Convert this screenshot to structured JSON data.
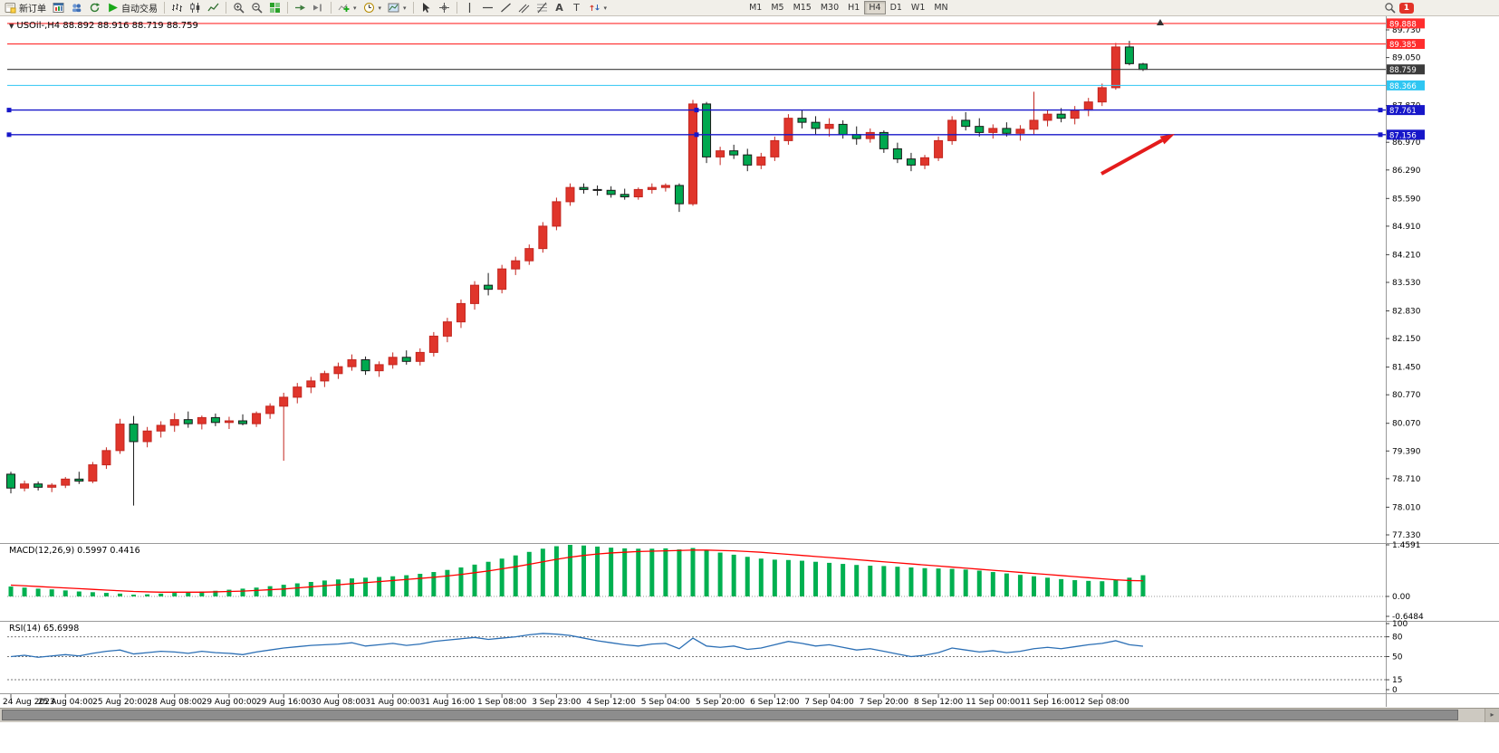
{
  "toolbar": {
    "new_order_label": "新订单",
    "autotrade_label": "自动交易",
    "timeframes": [
      "M1",
      "M5",
      "M15",
      "M30",
      "H1",
      "H4",
      "D1",
      "W1",
      "MN"
    ],
    "active_timeframe": "H4",
    "notification_count": "1",
    "text_tool_label": "A",
    "label_tool_label": "T",
    "scrollbar_arrow": "▸"
  },
  "chart": {
    "symbol_header": "USOil-,H4 88.892 88.916 88.719 88.759",
    "ohlc": {
      "open": "88.892",
      "high": "88.916",
      "low": "88.719",
      "close": "88.759"
    },
    "price_axis_labels": [
      "89.730",
      "89.050",
      "87.870",
      "86.970",
      "86.290",
      "85.590",
      "84.910",
      "84.210",
      "83.530",
      "82.830",
      "82.150",
      "81.450",
      "80.770",
      "80.070",
      "79.390",
      "78.710",
      "78.010",
      "77.330"
    ],
    "time_axis_labels": [
      "24 Aug 2023",
      "25 Aug 04:00",
      "25 Aug 20:00",
      "28 Aug 08:00",
      "29 Aug 00:00",
      "29 Aug 16:00",
      "30 Aug 08:00",
      "31 Aug 00:00",
      "31 Aug 16:00",
      "1 Sep 08:00",
      "3 Sep 23:00",
      "4 Sep 12:00",
      "5 Sep 04:00",
      "5 Sep 20:00",
      "6 Sep 12:00",
      "7 Sep 04:00",
      "7 Sep 20:00",
      "8 Sep 12:00",
      "11 Sep 00:00",
      "11 Sep 16:00",
      "12 Sep 08:00"
    ],
    "levels": [
      {
        "name": "resistance-line-1",
        "label": "89.888",
        "price": 89.888,
        "color": "#ff2d2d",
        "handles": false
      },
      {
        "name": "resistance-line-2",
        "label": "89.385",
        "price": 89.385,
        "color": "#ff2d2d",
        "handles": false
      },
      {
        "name": "current-price",
        "label": "88.759",
        "price": 88.759,
        "color": "#3c3c3c",
        "handles": false
      },
      {
        "name": "cyan-level-line",
        "label": "88.366",
        "price": 88.366,
        "color": "#2fc6f2",
        "handles": false
      },
      {
        "name": "blue-support-line-1",
        "label": "87.761",
        "price": 87.761,
        "color": "#1717c9",
        "handles": true
      },
      {
        "name": "blue-support-line-2",
        "label": "87.156",
        "price": 87.156,
        "color": "#1717c9",
        "handles": true
      }
    ],
    "annotation_arrow": {
      "color": "#e41b1b"
    }
  },
  "chart_data": {
    "type": "candlestick",
    "symbol": "USOil-",
    "timeframe": "H4",
    "up_color": "#e0352b",
    "down_color": "#00a84f",
    "candles": [
      [
        78.82,
        78.88,
        78.35,
        78.48
      ],
      [
        78.48,
        78.66,
        78.4,
        78.58
      ],
      [
        78.58,
        78.64,
        78.42,
        78.5
      ],
      [
        78.5,
        78.6,
        78.38,
        78.55
      ],
      [
        78.55,
        78.75,
        78.48,
        78.7
      ],
      [
        78.7,
        78.88,
        78.58,
        78.65
      ],
      [
        78.65,
        79.12,
        78.6,
        79.05
      ],
      [
        79.05,
        79.48,
        78.95,
        79.4
      ],
      [
        79.4,
        80.18,
        79.32,
        80.05
      ],
      [
        80.05,
        80.25,
        78.05,
        79.62
      ],
      [
        79.62,
        79.98,
        79.48,
        79.88
      ],
      [
        79.88,
        80.12,
        79.72,
        80.02
      ],
      [
        80.02,
        80.32,
        79.86,
        80.16
      ],
      [
        80.16,
        80.36,
        79.96,
        80.06
      ],
      [
        80.06,
        80.26,
        79.92,
        80.21
      ],
      [
        80.21,
        80.31,
        80.0,
        80.09
      ],
      [
        80.09,
        80.23,
        79.93,
        80.13
      ],
      [
        80.13,
        80.29,
        80.02,
        80.06
      ],
      [
        80.06,
        80.36,
        79.98,
        80.31
      ],
      [
        80.31,
        80.56,
        80.18,
        80.49
      ],
      [
        80.49,
        80.82,
        79.15,
        80.71
      ],
      [
        80.71,
        81.06,
        80.56,
        80.96
      ],
      [
        80.96,
        81.21,
        80.81,
        81.11
      ],
      [
        81.11,
        81.36,
        80.96,
        81.29
      ],
      [
        81.29,
        81.56,
        81.16,
        81.46
      ],
      [
        81.46,
        81.76,
        81.36,
        81.63
      ],
      [
        81.63,
        81.71,
        81.26,
        81.36
      ],
      [
        81.36,
        81.59,
        81.21,
        81.51
      ],
      [
        81.51,
        81.81,
        81.41,
        81.69
      ],
      [
        81.69,
        81.86,
        81.51,
        81.59
      ],
      [
        81.59,
        81.91,
        81.49,
        81.81
      ],
      [
        81.81,
        82.31,
        81.71,
        82.21
      ],
      [
        82.21,
        82.66,
        82.06,
        82.56
      ],
      [
        82.56,
        83.11,
        82.41,
        83.01
      ],
      [
        83.01,
        83.56,
        82.86,
        83.46
      ],
      [
        83.46,
        83.76,
        83.21,
        83.36
      ],
      [
        83.36,
        83.96,
        83.26,
        83.86
      ],
      [
        83.86,
        84.16,
        83.71,
        84.06
      ],
      [
        84.06,
        84.46,
        83.96,
        84.36
      ],
      [
        84.36,
        85.01,
        84.26,
        84.91
      ],
      [
        84.91,
        85.61,
        84.81,
        85.51
      ],
      [
        85.51,
        85.96,
        85.41,
        85.86
      ],
      [
        85.86,
        85.96,
        85.71,
        85.81
      ],
      [
        85.81,
        85.91,
        85.66,
        85.79
      ],
      [
        85.79,
        85.89,
        85.61,
        85.69
      ],
      [
        85.69,
        85.83,
        85.56,
        85.63
      ],
      [
        85.63,
        85.86,
        85.56,
        85.81
      ],
      [
        85.81,
        85.96,
        85.71,
        85.86
      ],
      [
        85.86,
        85.96,
        85.76,
        85.91
      ],
      [
        85.91,
        85.96,
        85.26,
        85.46
      ],
      [
        85.46,
        88.01,
        85.41,
        87.91
      ],
      [
        87.91,
        87.96,
        86.46,
        86.61
      ],
      [
        86.61,
        86.86,
        86.41,
        86.76
      ],
      [
        86.76,
        86.91,
        86.56,
        86.66
      ],
      [
        86.66,
        86.81,
        86.26,
        86.41
      ],
      [
        86.41,
        86.71,
        86.31,
        86.61
      ],
      [
        86.61,
        87.11,
        86.51,
        87.01
      ],
      [
        87.01,
        87.66,
        86.91,
        87.56
      ],
      [
        87.56,
        87.76,
        87.31,
        87.46
      ],
      [
        87.46,
        87.61,
        87.16,
        87.31
      ],
      [
        87.31,
        87.56,
        87.11,
        87.41
      ],
      [
        87.41,
        87.51,
        87.06,
        87.16
      ],
      [
        87.16,
        87.36,
        86.91,
        87.06
      ],
      [
        87.06,
        87.31,
        86.96,
        87.21
      ],
      [
        87.21,
        87.26,
        86.71,
        86.81
      ],
      [
        86.81,
        86.96,
        86.46,
        86.56
      ],
      [
        86.56,
        86.71,
        86.26,
        86.41
      ],
      [
        86.41,
        86.66,
        86.31,
        86.59
      ],
      [
        86.59,
        87.11,
        86.51,
        87.01
      ],
      [
        87.01,
        87.61,
        86.91,
        87.51
      ],
      [
        87.51,
        87.71,
        87.26,
        87.36
      ],
      [
        87.36,
        87.56,
        87.11,
        87.21
      ],
      [
        87.21,
        87.41,
        87.06,
        87.31
      ],
      [
        87.31,
        87.46,
        87.11,
        87.19
      ],
      [
        87.19,
        87.39,
        87.01,
        87.29
      ],
      [
        87.29,
        88.21,
        87.16,
        87.51
      ],
      [
        87.51,
        87.76,
        87.36,
        87.66
      ],
      [
        87.66,
        87.81,
        87.46,
        87.56
      ],
      [
        87.56,
        87.86,
        87.41,
        87.76
      ],
      [
        87.76,
        88.06,
        87.61,
        87.96
      ],
      [
        87.96,
        88.41,
        87.86,
        88.31
      ],
      [
        88.31,
        89.41,
        88.26,
        89.31
      ],
      [
        89.31,
        89.46,
        88.86,
        88.9
      ],
      [
        88.89,
        88.92,
        88.72,
        88.76
      ]
    ],
    "macd": {
      "label": "MACD(12,26,9) 0.5997 0.4416",
      "axis_labels": [
        "1.4591",
        "0.00",
        "-0.6484"
      ],
      "hist_color": "#00b050",
      "signal_color": "#ff0000",
      "histogram": [
        0.28,
        0.25,
        0.22,
        0.2,
        0.17,
        0.14,
        0.12,
        0.1,
        0.08,
        0.05,
        0.06,
        0.08,
        0.1,
        0.12,
        0.14,
        0.16,
        0.19,
        0.22,
        0.25,
        0.29,
        0.33,
        0.37,
        0.41,
        0.45,
        0.48,
        0.51,
        0.53,
        0.55,
        0.57,
        0.6,
        0.64,
        0.69,
        0.75,
        0.82,
        0.9,
        0.98,
        1.07,
        1.16,
        1.26,
        1.35,
        1.42,
        1.4591,
        1.44,
        1.41,
        1.38,
        1.36,
        1.35,
        1.35,
        1.36,
        1.33,
        1.37,
        1.3,
        1.24,
        1.18,
        1.12,
        1.07,
        1.04,
        1.03,
        1.01,
        0.98,
        0.95,
        0.92,
        0.89,
        0.87,
        0.86,
        0.84,
        0.82,
        0.8,
        0.79,
        0.78,
        0.76,
        0.73,
        0.69,
        0.65,
        0.61,
        0.57,
        0.53,
        0.49,
        0.46,
        0.44,
        0.43,
        0.46,
        0.53,
        0.5997
      ],
      "signal": [
        0.32,
        0.3,
        0.28,
        0.26,
        0.24,
        0.22,
        0.2,
        0.18,
        0.16,
        0.14,
        0.13,
        0.12,
        0.12,
        0.12,
        0.12,
        0.13,
        0.14,
        0.15,
        0.17,
        0.19,
        0.21,
        0.24,
        0.27,
        0.3,
        0.33,
        0.36,
        0.39,
        0.42,
        0.45,
        0.48,
        0.51,
        0.54,
        0.58,
        0.62,
        0.67,
        0.72,
        0.78,
        0.84,
        0.91,
        0.98,
        1.05,
        1.11,
        1.16,
        1.2,
        1.23,
        1.25,
        1.27,
        1.28,
        1.29,
        1.3,
        1.31,
        1.31,
        1.3,
        1.29,
        1.27,
        1.25,
        1.22,
        1.19,
        1.16,
        1.13,
        1.1,
        1.07,
        1.04,
        1.01,
        0.98,
        0.95,
        0.92,
        0.89,
        0.86,
        0.83,
        0.8,
        0.77,
        0.74,
        0.71,
        0.68,
        0.65,
        0.62,
        0.59,
        0.56,
        0.53,
        0.5,
        0.47,
        0.45,
        0.4416
      ]
    },
    "rsi": {
      "label": "RSI(14) 65.6998",
      "axis_labels": [
        "100",
        "80",
        "50",
        "15",
        "0"
      ],
      "levels": [
        80,
        50,
        15
      ],
      "color": "#2b6fb5",
      "values": [
        50,
        52,
        49,
        51,
        53,
        51,
        55,
        58,
        60,
        54,
        56,
        58,
        57,
        55,
        58,
        56,
        55,
        53,
        57,
        60,
        63,
        65,
        67,
        68,
        69,
        71,
        66,
        68,
        70,
        67,
        69,
        73,
        75,
        77,
        79,
        76,
        78,
        80,
        83,
        85,
        84,
        82,
        78,
        74,
        71,
        68,
        66,
        69,
        70,
        62,
        78,
        66,
        64,
        66,
        61,
        63,
        68,
        73,
        70,
        66,
        68,
        64,
        60,
        62,
        58,
        54,
        50,
        52,
        56,
        63,
        60,
        57,
        59,
        56,
        58,
        62,
        64,
        62,
        65,
        68,
        70,
        74,
        68,
        65.6998
      ]
    }
  }
}
